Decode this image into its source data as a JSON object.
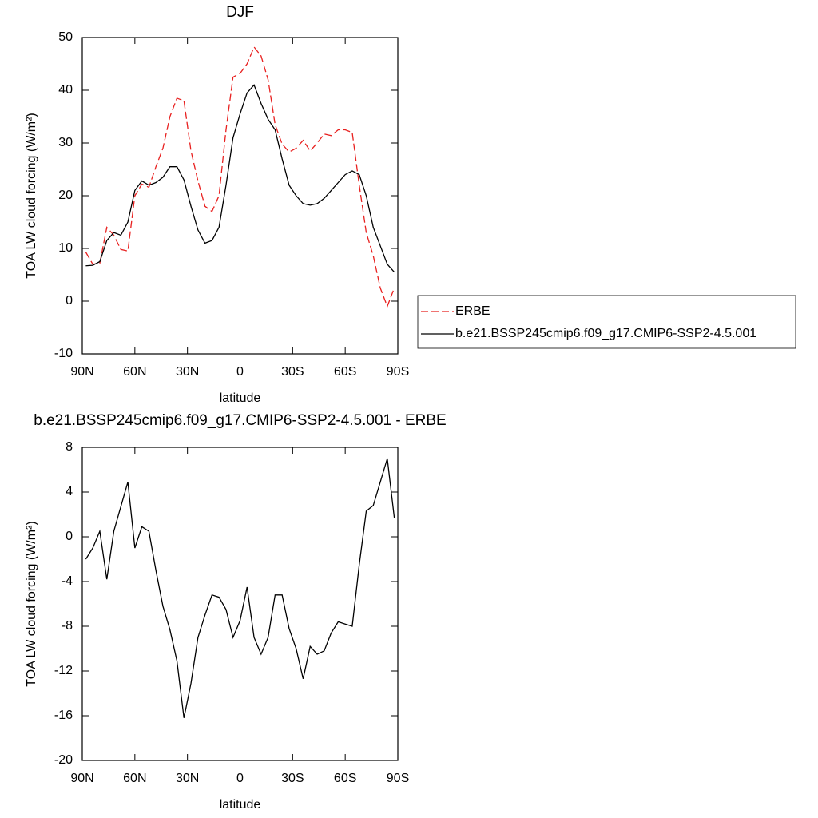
{
  "chart_data": [
    {
      "type": "line",
      "title": "DJF",
      "x_label": "latitude",
      "y_label": "TOA LW cloud forcing (W/m²)",
      "x": [
        88,
        84,
        80,
        76,
        72,
        68,
        64,
        60,
        56,
        52,
        48,
        44,
        40,
        36,
        32,
        28,
        24,
        20,
        16,
        12,
        8,
        4,
        0,
        -4,
        -8,
        -12,
        -16,
        -20,
        -24,
        -28,
        -32,
        -36,
        -40,
        -44,
        -48,
        -52,
        -56,
        -60,
        -64,
        -68,
        -72,
        -76,
        -80,
        -84,
        -88
      ],
      "series": [
        {
          "name": "ERBE",
          "color": "#e8201f",
          "dash": "dashed",
          "values": [
            9.3,
            7,
            7.2,
            14,
            12.5,
            9.8,
            9.5,
            20,
            22.2,
            21.6,
            25.5,
            29,
            35,
            38.5,
            38,
            28.5,
            22.8,
            18,
            17,
            20,
            32.5,
            42.5,
            43.2,
            45,
            48.2,
            46.5,
            42,
            33.5,
            29.8,
            28.3,
            29,
            30.5,
            28.5,
            30,
            31.7,
            31.4,
            32.5,
            32.5,
            32,
            22,
            13,
            8.6,
            2.5,
            -1,
            2.5
          ]
        },
        {
          "name": "b.e21.BSSP245cmip6.f09_g17.CMIP6-SSP2-4.5.001",
          "color": "#000000",
          "dash": "solid",
          "values": [
            6.7,
            6.8,
            7.5,
            11.5,
            13,
            12.5,
            15,
            21,
            22.8,
            22,
            22.5,
            23.5,
            25.5,
            25.5,
            23,
            18,
            13.5,
            11,
            11.5,
            14,
            22,
            31,
            35.5,
            39.5,
            41,
            37.5,
            34.5,
            32.5,
            27,
            22,
            20,
            18.5,
            18.2,
            18.5,
            19.5,
            21,
            22.5,
            24,
            24.7,
            24,
            20,
            14,
            10.5,
            7,
            5.5
          ]
        }
      ],
      "xlim": [
        90,
        -90
      ],
      "xticks": [
        {
          "value": 90,
          "label": "90N"
        },
        {
          "value": 60,
          "label": "60N"
        },
        {
          "value": 30,
          "label": "30N"
        },
        0,
        {
          "value": -30,
          "label": "30S"
        },
        {
          "value": -60,
          "label": "60S"
        },
        {
          "value": -90,
          "label": "90S"
        }
      ],
      "ylim": [
        -10,
        50
      ],
      "yticks": [
        -10,
        0,
        10,
        20,
        30,
        40,
        50
      ],
      "legend": "right"
    },
    {
      "type": "line",
      "title": "b.e21.BSSP245cmip6.f09_g17.CMIP6-SSP2-4.5.001 - ERBE",
      "x_label": "latitude",
      "y_label": "TOA LW cloud forcing (W/m²)",
      "x": [
        88,
        84,
        80,
        76,
        72,
        68,
        64,
        60,
        56,
        52,
        48,
        44,
        40,
        36,
        32,
        28,
        24,
        20,
        16,
        12,
        8,
        4,
        0,
        -4,
        -8,
        -12,
        -16,
        -20,
        -24,
        -28,
        -32,
        -36,
        -40,
        -44,
        -48,
        -52,
        -56,
        -60,
        -64,
        -68,
        -72,
        -76,
        -80,
        -84,
        -88
      ],
      "color": "#000000",
      "values": [
        -2,
        -1,
        0.5,
        -3.8,
        0.5,
        2.7,
        4.9,
        -1,
        0.9,
        0.5,
        -3,
        -6.2,
        -8.3,
        -11.1,
        -16.2,
        -13.1,
        -9,
        -7,
        -5.2,
        -5.4,
        -6.5,
        -9,
        -7.5,
        -4.5,
        -9,
        -10.5,
        -9,
        -5.2,
        -5.2,
        -8.2,
        -10,
        -12.7,
        -9.8,
        -10.5,
        -10.2,
        -8.6,
        -7.6,
        -7.8,
        -8,
        -2.5,
        2.3,
        2.8,
        4.9,
        7,
        1.7
      ],
      "xlim": [
        90,
        -90
      ],
      "xticks": [
        {
          "value": 90,
          "label": "90N"
        },
        {
          "value": 60,
          "label": "60N"
        },
        {
          "value": 30,
          "label": "30N"
        },
        0,
        {
          "value": -30,
          "label": "30S"
        },
        {
          "value": -60,
          "label": "60S"
        },
        {
          "value": -90,
          "label": "90S"
        }
      ],
      "ylim": [
        -20,
        8
      ],
      "yticks": [
        -20,
        -16,
        -12,
        -8,
        -4,
        0,
        4,
        8
      ]
    }
  ]
}
